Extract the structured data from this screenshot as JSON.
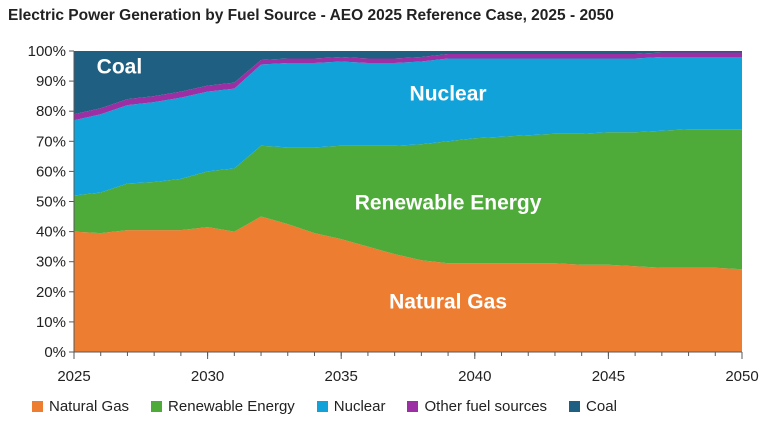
{
  "chart_data": {
    "type": "area",
    "stacked": true,
    "title": "Electric Power Generation by Fuel Source - AEO 2025 Reference Case, 2025 - 2050",
    "xlabel": "",
    "ylabel": "",
    "x": [
      2025,
      2026,
      2027,
      2028,
      2029,
      2030,
      2031,
      2032,
      2033,
      2034,
      2035,
      2036,
      2037,
      2038,
      2039,
      2040,
      2041,
      2042,
      2043,
      2044,
      2045,
      2046,
      2047,
      2048,
      2049,
      2050
    ],
    "xticks": [
      "2025",
      "2030",
      "2035",
      "2040",
      "2045",
      "2050"
    ],
    "ylim": [
      0,
      100
    ],
    "yticks": [
      "0%",
      "10%",
      "20%",
      "30%",
      "40%",
      "50%",
      "60%",
      "70%",
      "80%",
      "90%",
      "100%"
    ],
    "series": [
      {
        "name": "Natural Gas",
        "color": "#ED7D31",
        "values": [
          40,
          39.5,
          40.5,
          40.5,
          40.5,
          41.5,
          40,
          45,
          42.5,
          39.5,
          37.5,
          35,
          32.5,
          30.5,
          29.5,
          29.5,
          29.5,
          29.5,
          29.5,
          29,
          29,
          28.5,
          28,
          28,
          28,
          27.5
        ]
      },
      {
        "name": "Renewable Energy",
        "color": "#4EAB3A",
        "values": [
          12,
          13.5,
          15.5,
          16,
          17,
          18.5,
          21,
          23.5,
          25.5,
          28.5,
          31,
          33.5,
          36,
          38.5,
          40.5,
          41.5,
          42,
          42.5,
          43,
          43.5,
          44,
          44.5,
          45.5,
          46,
          46,
          46.5
        ]
      },
      {
        "name": "Nuclear",
        "color": "#11A2DA",
        "values": [
          25,
          26,
          26,
          26.5,
          27,
          26.5,
          26.5,
          27,
          28,
          28,
          28,
          27.5,
          27.5,
          27.5,
          27.5,
          26.5,
          26,
          25.5,
          25,
          25,
          24.5,
          24.5,
          24.5,
          24,
          24,
          24
        ]
      },
      {
        "name": "Other fuel sources",
        "color": "#9C2FA3",
        "values": [
          2,
          2,
          2,
          2,
          2,
          2,
          2,
          1.5,
          1.5,
          1.5,
          1.5,
          1.5,
          1.5,
          1.5,
          1.5,
          1.5,
          1.5,
          1.5,
          1.5,
          1.5,
          1.5,
          1.5,
          1.5,
          1.5,
          1.5,
          1.5
        ]
      },
      {
        "name": "Coal",
        "color": "#1E5F82",
        "values": [
          21,
          19,
          16,
          15,
          13.5,
          11.5,
          10.5,
          3,
          2.5,
          2.5,
          2,
          2.5,
          2.5,
          2,
          1,
          1,
          1,
          1,
          1,
          1,
          1,
          1,
          0.5,
          0.5,
          0.5,
          0.5
        ]
      }
    ],
    "area_labels": [
      "Coal",
      "Nuclear",
      "Renewable Energy",
      "Natural Gas"
    ],
    "legend": {
      "position": "bottom",
      "entries": [
        "Natural Gas",
        "Renewable Energy",
        "Nuclear",
        "Other fuel sources",
        "Coal"
      ]
    },
    "grid": false
  }
}
